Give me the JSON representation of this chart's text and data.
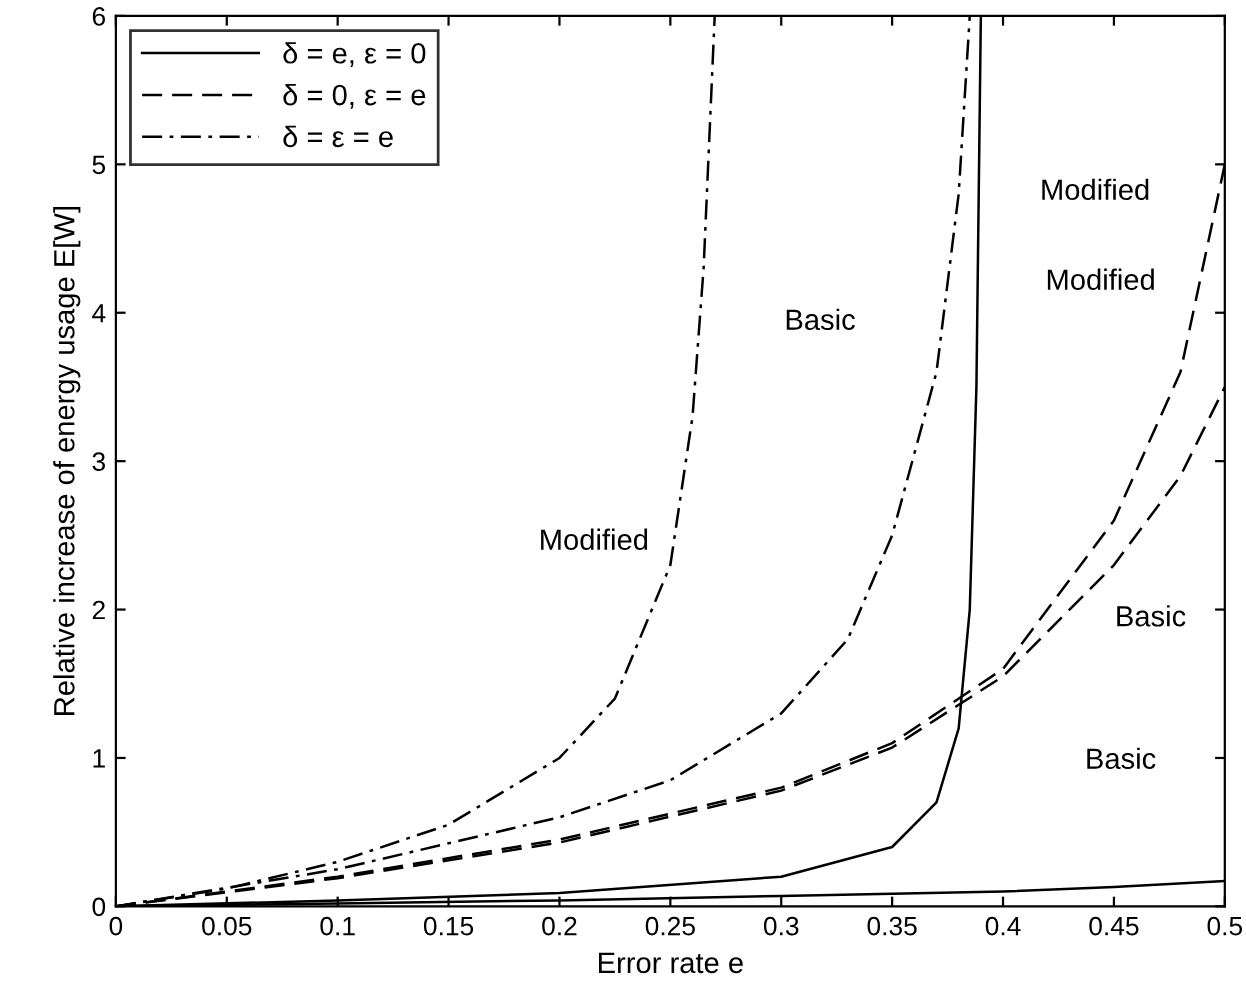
{
  "chart_data": {
    "type": "line",
    "xlabel": "Error rate e",
    "ylabel": "Relative increase of energy usage E[W]",
    "xlim": [
      0,
      0.5
    ],
    "ylim": [
      0,
      6
    ],
    "xticks": [
      0,
      0.05,
      0.1,
      0.15,
      0.2,
      0.25,
      0.3,
      0.35,
      0.4,
      0.45,
      0.5
    ],
    "yticks": [
      0,
      1,
      2,
      3,
      4,
      5,
      6
    ],
    "grid": false,
    "legend": "top left",
    "marker": "none",
    "series": [
      {
        "name": "δ = e, ε = 0",
        "color": "#000000",
        "line_style": "solid",
        "x": [
          0,
          0.1,
          0.2,
          0.3,
          0.35,
          0.37,
          0.38,
          0.385,
          0.388,
          0.39
        ],
        "values": [
          0,
          0.04,
          0.09,
          0.2,
          0.4,
          0.7,
          1.2,
          2.0,
          3.5,
          6.0
        ]
      },
      {
        "color": "#000000",
        "line_style": "solid",
        "x": [
          0,
          0.1,
          0.2,
          0.3,
          0.4,
          0.45,
          0.5
        ],
        "values": [
          0,
          0.02,
          0.04,
          0.07,
          0.1,
          0.13,
          0.17
        ]
      },
      {
        "name": "δ = 0, ε = e",
        "color": "#000000",
        "line_style": "dashed",
        "x": [
          0,
          0.1,
          0.2,
          0.3,
          0.35,
          0.4,
          0.45,
          0.48,
          0.5
        ],
        "values": [
          0,
          0.2,
          0.45,
          0.8,
          1.1,
          1.6,
          2.6,
          3.6,
          5.0
        ]
      },
      {
        "color": "#000000",
        "line_style": "dashed",
        "x": [
          0,
          0.1,
          0.2,
          0.3,
          0.35,
          0.4,
          0.45,
          0.48,
          0.5
        ],
        "values": [
          0,
          0.19,
          0.43,
          0.78,
          1.07,
          1.55,
          2.3,
          2.9,
          3.5
        ]
      },
      {
        "name": "δ = ε = e",
        "color": "#000000",
        "line_style": "dashdot",
        "x": [
          0,
          0.05,
          0.1,
          0.15,
          0.2,
          0.225,
          0.25,
          0.26,
          0.265,
          0.27
        ],
        "values": [
          0,
          0.12,
          0.3,
          0.55,
          1.0,
          1.4,
          2.3,
          3.3,
          4.3,
          6.0
        ]
      },
      {
        "color": "#000000",
        "line_style": "dashdot",
        "x": [
          0,
          0.1,
          0.2,
          0.25,
          0.3,
          0.33,
          0.35,
          0.37,
          0.38,
          0.385
        ],
        "values": [
          0,
          0.25,
          0.6,
          0.85,
          1.3,
          1.8,
          2.5,
          3.6,
          4.8,
          6.0
        ]
      }
    ],
    "annotations": [
      "Modified",
      "Modified",
      "Basic",
      "Modified",
      "Basic",
      "Basic"
    ]
  }
}
